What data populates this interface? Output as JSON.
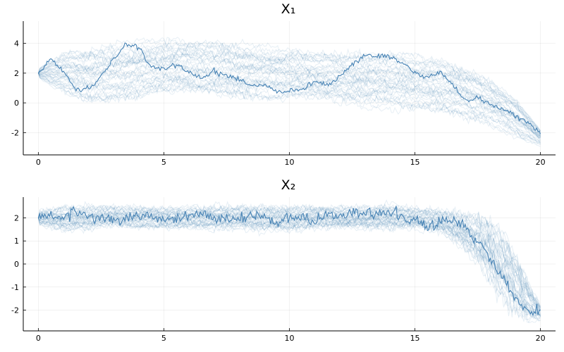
{
  "chart_data": [
    {
      "type": "line",
      "title": "X₁",
      "xlim": [
        -0.6,
        20.6
      ],
      "ylim": [
        -3.5,
        5.5
      ],
      "xticks": [
        0,
        5,
        10,
        15,
        20
      ],
      "yticks": [
        -2,
        0,
        2,
        4
      ],
      "xtick_labels": [
        "0",
        "5",
        "10",
        "15",
        "20"
      ],
      "ytick_labels": [
        "-2",
        "0",
        "2",
        "4"
      ],
      "grid": true,
      "series_color": "#4682b4",
      "background_path_count": 40,
      "highlight": {
        "x": [
          0,
          0.5,
          1,
          1.5,
          2,
          2.5,
          3,
          3.5,
          4,
          4.5,
          5,
          5.5,
          6,
          6.5,
          7,
          7.5,
          8,
          8.5,
          9,
          9.5,
          10,
          10.5,
          11,
          11.5,
          12,
          12.5,
          13,
          13.5,
          14,
          14.5,
          15,
          15.5,
          16,
          16.5,
          17,
          17.5,
          18,
          18.5,
          19,
          19.5,
          20
        ],
        "y": [
          2.0,
          3.0,
          2.1,
          0.9,
          0.9,
          1.8,
          3.0,
          3.9,
          3.7,
          2.4,
          2.3,
          2.5,
          2.1,
          1.7,
          2.1,
          1.8,
          1.6,
          1.1,
          1.3,
          0.8,
          0.7,
          0.9,
          1.5,
          1.2,
          1.8,
          2.6,
          3.2,
          3.1,
          3.1,
          2.7,
          2.0,
          1.7,
          2.1,
          1.2,
          0.2,
          0.3,
          -0.1,
          -0.4,
          -0.8,
          -1.3,
          -2.1
        ]
      },
      "band": {
        "x": [
          0,
          1,
          2,
          3,
          4,
          5,
          6,
          7,
          8,
          9,
          10,
          11,
          12,
          13,
          14,
          15,
          16,
          17,
          18,
          19,
          20
        ],
        "lower": [
          1.6,
          0.2,
          -0.5,
          -0.4,
          -0.2,
          0.1,
          0.2,
          -0.1,
          -0.3,
          -0.2,
          -0.2,
          -0.3,
          -0.5,
          -0.7,
          -0.8,
          -0.9,
          -1.2,
          -1.5,
          -2.0,
          -2.7,
          -3.0
        ],
        "upper": [
          2.4,
          3.9,
          4.2,
          4.5,
          4.7,
          4.8,
          4.7,
          4.6,
          4.4,
          4.2,
          4.1,
          3.9,
          3.8,
          3.8,
          3.9,
          3.7,
          3.5,
          2.9,
          2.1,
          0.8,
          -1.6
        ]
      }
    },
    {
      "type": "line",
      "title": "X₂",
      "xlim": [
        -0.6,
        20.6
      ],
      "ylim": [
        -2.9,
        2.9
      ],
      "xticks": [
        0,
        5,
        10,
        15,
        20
      ],
      "yticks": [
        -2,
        -1,
        0,
        1,
        2
      ],
      "xtick_labels": [
        "0",
        "5",
        "10",
        "15",
        "20"
      ],
      "ytick_labels": [
        "-2",
        "-1",
        "0",
        "1",
        "2"
      ],
      "grid": true,
      "series_color": "#4682b4",
      "background_path_count": 40,
      "highlight": {
        "x": [
          0,
          0.5,
          1,
          1.5,
          2,
          2.5,
          3,
          3.5,
          4,
          4.5,
          5,
          5.5,
          6,
          6.5,
          7,
          7.5,
          8,
          8.5,
          9,
          9.5,
          10,
          10.5,
          11,
          11.5,
          12,
          12.5,
          13,
          13.5,
          14,
          14.5,
          15,
          15.5,
          16,
          16.5,
          17,
          17.3,
          17.6,
          18.0,
          18.4,
          18.8,
          19.2,
          19.6,
          20
        ],
        "y": [
          2.0,
          2.1,
          2.0,
          2.3,
          2.1,
          2.0,
          1.9,
          2.0,
          2.1,
          2.0,
          2.0,
          1.9,
          2.1,
          2.2,
          2.0,
          2.0,
          1.9,
          2.1,
          2.0,
          1.8,
          2.0,
          2.0,
          1.9,
          2.1,
          2.0,
          2.3,
          2.2,
          2.1,
          2.3,
          2.0,
          1.9,
          1.6,
          1.8,
          1.9,
          1.7,
          1.1,
          0.9,
          0.2,
          -0.4,
          -1.2,
          -1.8,
          -2.1,
          -2.0
        ]
      },
      "band": {
        "x": [
          0,
          1,
          2,
          3,
          4,
          5,
          6,
          7,
          8,
          9,
          10,
          11,
          12,
          13,
          14,
          15,
          16,
          16.8,
          17.4,
          18,
          18.6,
          19.2,
          19.6,
          20
        ],
        "lower": [
          1.6,
          1.3,
          1.4,
          1.5,
          1.4,
          1.4,
          1.4,
          1.4,
          1.4,
          1.3,
          1.3,
          1.4,
          1.4,
          1.4,
          1.4,
          1.4,
          1.2,
          0.6,
          -0.1,
          -1.2,
          -2.0,
          -2.5,
          -2.6,
          -2.5
        ],
        "upper": [
          2.4,
          2.6,
          2.6,
          2.6,
          2.6,
          2.6,
          2.6,
          2.6,
          2.6,
          2.6,
          2.6,
          2.6,
          2.6,
          2.6,
          2.7,
          2.6,
          2.5,
          2.4,
          2.4,
          2.3,
          1.6,
          0.3,
          -0.8,
          -1.7
        ]
      }
    }
  ]
}
